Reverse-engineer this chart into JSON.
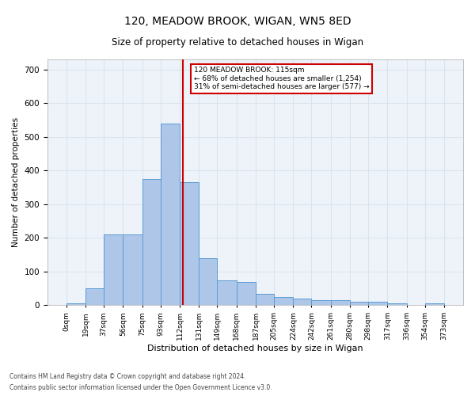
{
  "title_line1": "120, MEADOW BROOK, WIGAN, WN5 8ED",
  "title_line2": "Size of property relative to detached houses in Wigan",
  "xlabel": "Distribution of detached houses by size in Wigan",
  "ylabel": "Number of detached properties",
  "annotation_line1": "120 MEADOW BROOK: 115sqm",
  "annotation_line2": "← 68% of detached houses are smaller (1,254)",
  "annotation_line3": "31% of semi-detached houses are larger (577) →",
  "property_size": 115,
  "bar_color": "#aec6e8",
  "bar_edge_color": "#5b9bd5",
  "grid_color": "#d9e4f0",
  "vline_color": "#cc0000",
  "background_color": "#eef3f9",
  "footnote1": "Contains HM Land Registry data © Crown copyright and database right 2024.",
  "footnote2": "Contains public sector information licensed under the Open Government Licence v3.0.",
  "bin_edges": [
    0,
    19,
    37,
    56,
    75,
    93,
    112,
    131,
    149,
    168,
    187,
    205,
    224,
    242,
    261,
    280,
    298,
    317,
    336,
    354,
    373
  ],
  "bin_labels": [
    "0sqm",
    "19sqm",
    "37sqm",
    "56sqm",
    "75sqm",
    "93sqm",
    "112sqm",
    "131sqm",
    "149sqm",
    "168sqm",
    "187sqm",
    "205sqm",
    "224sqm",
    "242sqm",
    "261sqm",
    "280sqm",
    "298sqm",
    "317sqm",
    "336sqm",
    "354sqm",
    "373sqm"
  ],
  "counts": [
    5,
    50,
    210,
    210,
    375,
    540,
    365,
    140,
    75,
    70,
    35,
    25,
    20,
    15,
    15,
    10,
    10,
    5,
    0,
    5
  ],
  "ylim": [
    0,
    730
  ],
  "yticks": [
    0,
    100,
    200,
    300,
    400,
    500,
    600,
    700
  ]
}
